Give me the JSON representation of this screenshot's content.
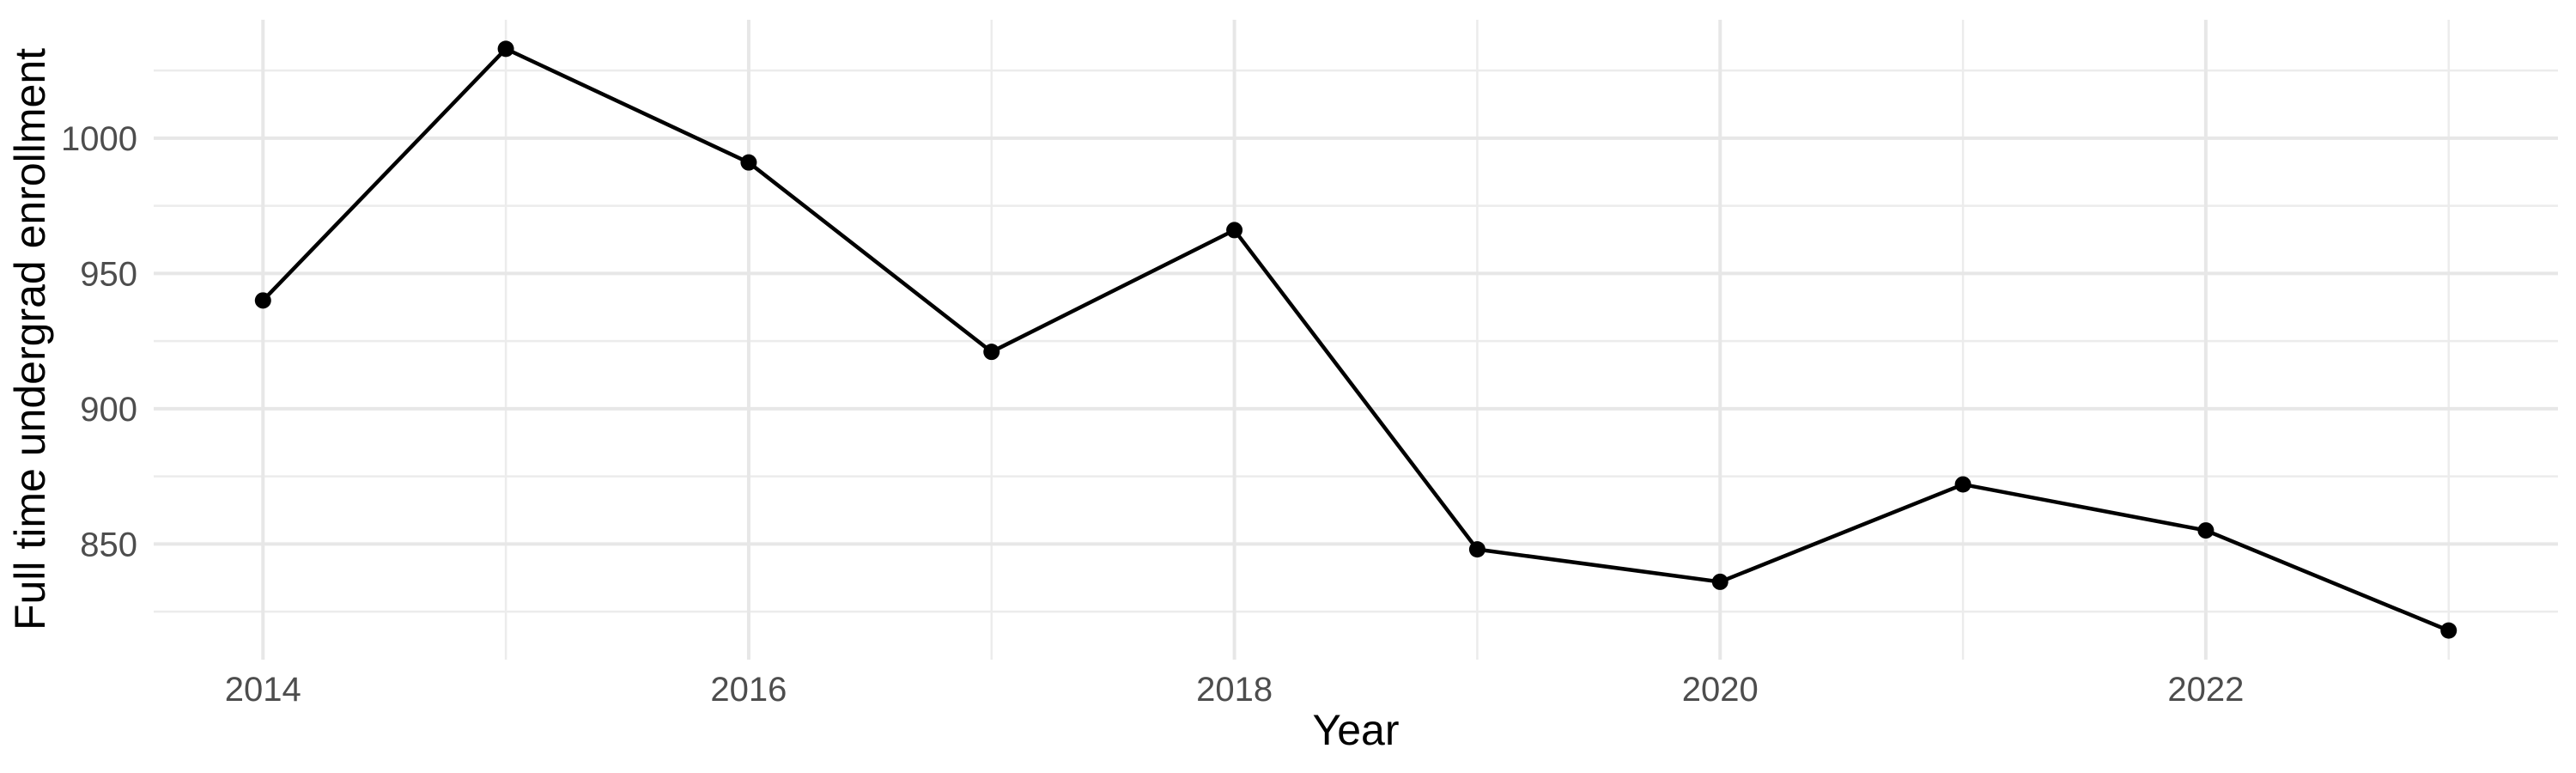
{
  "chart_data": {
    "type": "line",
    "title": "",
    "xlabel": "Year",
    "ylabel": "Full time undergrad enrollment",
    "series": [
      {
        "name": "Full time undergrad enrollment",
        "x": [
          2014,
          2015,
          2016,
          2017,
          2018,
          2019,
          2020,
          2021,
          2022,
          2023
        ],
        "values": [
          940,
          1033,
          991,
          921,
          966,
          848,
          836,
          872,
          855,
          818
        ]
      }
    ],
    "x_major_ticks": [
      2014,
      2016,
      2018,
      2020,
      2022
    ],
    "x_minor_gridlines": [
      2015,
      2017,
      2019,
      2021,
      2023
    ],
    "y_major_ticks": [
      850,
      900,
      950,
      1000
    ],
    "y_minor_gridlines": [
      825,
      875,
      925,
      975,
      1025
    ],
    "xlim": [
      2013.55,
      2023.45
    ],
    "ylim": [
      807.25,
      1043.75
    ],
    "grid": true,
    "legend_position": "none",
    "point_marker": "filled-circle",
    "colors": {
      "line": "#000000",
      "point": "#000000",
      "grid_major": "#E7E7E7",
      "grid_minor": "#ECECEC",
      "tick_text": "#4D4D4D",
      "axis_title_text": "#000000",
      "background": "#FFFFFF"
    }
  }
}
